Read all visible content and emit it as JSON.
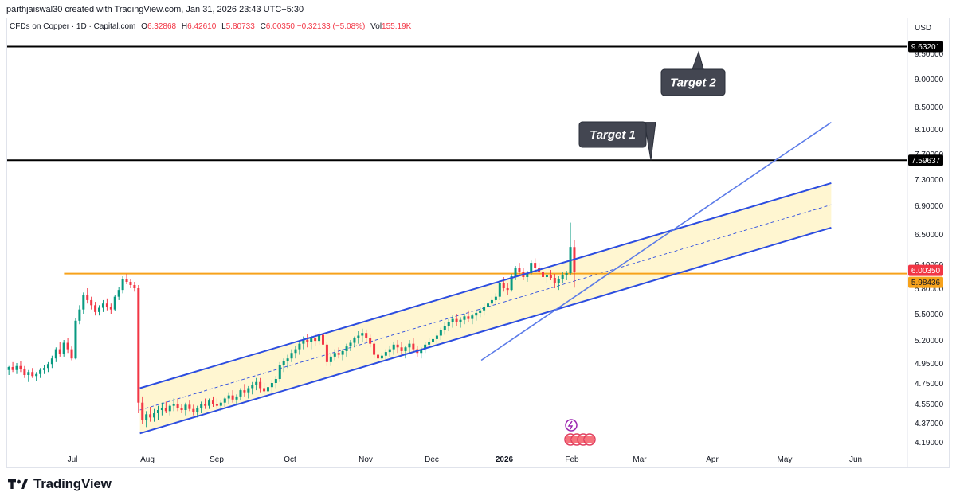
{
  "header": {
    "title": "parthjaiswal30 created with TradingView.com, Jan 31, 2026 23:43 UTC+5:30"
  },
  "legend": {
    "symbol": "CFDs on Copper · 1D · Capital.com",
    "open_label": "O",
    "open": "6.32868",
    "high_label": "H",
    "high": "6.42610",
    "low_label": "L",
    "low": "5.80733",
    "close_label": "C",
    "close": "6.00350",
    "change": "−0.32133 (−5.08%)",
    "vol_label": "Vol",
    "vol": "155.19K"
  },
  "currency": "USD",
  "footer": {
    "brand": "TradingView"
  },
  "colors": {
    "up": "#089981",
    "down": "#f23645",
    "channel": "#2c4de0",
    "channel_fill": "#fff5cc",
    "orange": "#f7a21b",
    "target_box": "#434651"
  },
  "chart_data": {
    "type": "candlestick",
    "title": "CFDs on Copper · 1D · Capital.com",
    "ylabel": "USD",
    "ylim": [
      4.1,
      9.75
    ],
    "y_ticks": [
      "4.19000",
      "4.37000",
      "4.55000",
      "4.75000",
      "4.95000",
      "5.20000",
      "5.50000",
      "5.80000",
      "6.10000",
      "6.50000",
      "6.90000",
      "7.30000",
      "7.70000",
      "8.10000",
      "8.50000",
      "9.00000",
      "9.50000"
    ],
    "x_ticks": [
      "Jul",
      "Aug",
      "Sep",
      "Oct",
      "Nov",
      "Dec",
      "2026",
      "Feb",
      "Mar",
      "Apr",
      "May",
      "Jun"
    ],
    "price_labels": [
      {
        "text": "9.63201",
        "value": 9.63201,
        "style": "black"
      },
      {
        "text": "7.59637",
        "value": 7.59637,
        "style": "black"
      },
      {
        "text": "6.00350",
        "value": 6.0035,
        "style": "red"
      },
      {
        "text": "5.98436",
        "value": 5.98436,
        "style": "orange"
      }
    ],
    "horizontal_lines": [
      {
        "name": "target-2-line",
        "value": 9.63201
      },
      {
        "name": "target-1-line",
        "value": 7.59637
      },
      {
        "name": "support-line",
        "value": 5.98436
      },
      {
        "name": "last-price-line",
        "value": 6.0035
      }
    ],
    "annotations": [
      {
        "name": "target-1",
        "text": "Target 1",
        "value": 7.59637
      },
      {
        "name": "target-2",
        "text": "Target 2",
        "value": 9.63201
      }
    ],
    "channel": {
      "upper": [
        [
          77.0,
          4.7
        ],
        [
          478.0,
          7.24
        ]
      ],
      "lower": [
        [
          77.0,
          4.27
        ],
        [
          478.0,
          6.59
        ]
      ],
      "mid": [
        [
          77.0,
          4.49
        ],
        [
          478.0,
          6.91
        ]
      ]
    },
    "trendline": [
      [
        275.0,
        4.98
      ],
      [
        478.0,
        8.22
      ]
    ],
    "candles_x_range": [
      1.0,
      329.0
    ],
    "candles": [
      [
        4.88,
        4.92,
        4.83,
        4.91
      ],
      [
        4.91,
        4.96,
        4.86,
        4.88
      ],
      [
        4.88,
        4.95,
        4.84,
        4.92
      ],
      [
        4.92,
        4.97,
        4.86,
        4.89
      ],
      [
        4.89,
        4.92,
        4.8,
        4.83
      ],
      [
        4.83,
        4.88,
        4.76,
        4.86
      ],
      [
        4.86,
        4.9,
        4.8,
        4.82
      ],
      [
        4.82,
        4.86,
        4.77,
        4.84
      ],
      [
        4.84,
        4.9,
        4.8,
        4.88
      ],
      [
        4.88,
        4.93,
        4.84,
        4.9
      ],
      [
        4.9,
        4.96,
        4.86,
        4.94
      ],
      [
        4.94,
        5.03,
        4.9,
        5.0
      ],
      [
        5.0,
        5.12,
        4.96,
        5.1
      ],
      [
        5.1,
        5.18,
        5.02,
        5.05
      ],
      [
        5.05,
        5.2,
        5.02,
        5.17
      ],
      [
        5.17,
        5.22,
        5.06,
        5.1
      ],
      [
        5.1,
        5.13,
        4.98,
        5.0
      ],
      [
        5.0,
        5.45,
        4.99,
        5.42
      ],
      [
        5.42,
        5.6,
        5.38,
        5.55
      ],
      [
        5.55,
        5.75,
        5.5,
        5.72
      ],
      [
        5.72,
        5.8,
        5.62,
        5.66
      ],
      [
        5.66,
        5.7,
        5.55,
        5.6
      ],
      [
        5.6,
        5.64,
        5.48,
        5.52
      ],
      [
        5.52,
        5.6,
        5.48,
        5.57
      ],
      [
        5.57,
        5.66,
        5.52,
        5.62
      ],
      [
        5.62,
        5.68,
        5.54,
        5.58
      ],
      [
        5.58,
        5.62,
        5.5,
        5.55
      ],
      [
        5.55,
        5.72,
        5.53,
        5.7
      ],
      [
        5.7,
        5.82,
        5.66,
        5.78
      ],
      [
        5.78,
        5.95,
        5.74,
        5.92
      ],
      [
        5.92,
        5.98,
        5.85,
        5.88
      ],
      [
        5.88,
        5.92,
        5.8,
        5.84
      ],
      [
        5.84,
        5.88,
        5.76,
        5.8
      ],
      [
        5.8,
        5.84,
        4.46,
        4.56
      ],
      [
        4.56,
        4.62,
        4.36,
        4.4
      ],
      [
        4.4,
        4.48,
        4.33,
        4.45
      ],
      [
        4.45,
        4.52,
        4.38,
        4.42
      ],
      [
        4.42,
        4.5,
        4.38,
        4.46
      ],
      [
        4.46,
        4.53,
        4.4,
        4.49
      ],
      [
        4.49,
        4.56,
        4.44,
        4.51
      ],
      [
        4.51,
        4.57,
        4.46,
        4.48
      ],
      [
        4.48,
        4.55,
        4.44,
        4.53
      ],
      [
        4.53,
        4.6,
        4.48,
        4.55
      ],
      [
        4.55,
        4.6,
        4.48,
        4.51
      ],
      [
        4.51,
        4.55,
        4.46,
        4.49
      ],
      [
        4.49,
        4.56,
        4.44,
        4.54
      ],
      [
        4.54,
        4.58,
        4.48,
        4.5
      ],
      [
        4.5,
        4.54,
        4.44,
        4.47
      ],
      [
        4.47,
        4.53,
        4.42,
        4.51
      ],
      [
        4.51,
        4.57,
        4.46,
        4.55
      ],
      [
        4.55,
        4.6,
        4.5,
        4.53
      ],
      [
        4.53,
        4.6,
        4.5,
        4.58
      ],
      [
        4.58,
        4.62,
        4.52,
        4.55
      ],
      [
        4.55,
        4.6,
        4.5,
        4.53
      ],
      [
        4.53,
        4.58,
        4.48,
        4.56
      ],
      [
        4.56,
        4.62,
        4.52,
        4.6
      ],
      [
        4.6,
        4.66,
        4.55,
        4.63
      ],
      [
        4.63,
        4.68,
        4.56,
        4.59
      ],
      [
        4.59,
        4.64,
        4.54,
        4.62
      ],
      [
        4.62,
        4.7,
        4.58,
        4.68
      ],
      [
        4.68,
        4.74,
        4.62,
        4.66
      ],
      [
        4.66,
        4.72,
        4.6,
        4.7
      ],
      [
        4.7,
        4.76,
        4.64,
        4.73
      ],
      [
        4.73,
        4.8,
        4.68,
        4.76
      ],
      [
        4.76,
        4.8,
        4.66,
        4.7
      ],
      [
        4.7,
        4.75,
        4.64,
        4.67
      ],
      [
        4.67,
        4.73,
        4.62,
        4.71
      ],
      [
        4.71,
        4.78,
        4.66,
        4.75
      ],
      [
        4.75,
        4.82,
        4.7,
        4.79
      ],
      [
        4.79,
        4.96,
        4.76,
        4.93
      ],
      [
        4.93,
        5.0,
        4.86,
        4.97
      ],
      [
        4.97,
        5.04,
        4.9,
        5.0
      ],
      [
        5.0,
        5.1,
        4.96,
        5.06
      ],
      [
        5.06,
        5.14,
        5.0,
        5.1
      ],
      [
        5.1,
        5.2,
        5.04,
        5.16
      ],
      [
        5.16,
        5.24,
        5.1,
        5.2
      ],
      [
        5.2,
        5.27,
        5.12,
        5.18
      ],
      [
        5.18,
        5.25,
        5.1,
        5.22
      ],
      [
        5.22,
        5.28,
        5.14,
        5.19
      ],
      [
        5.19,
        5.3,
        5.15,
        5.26
      ],
      [
        5.26,
        5.3,
        5.12,
        5.15
      ],
      [
        5.15,
        5.18,
        4.92,
        4.96
      ],
      [
        4.96,
        5.05,
        4.92,
        5.02
      ],
      [
        5.02,
        5.1,
        4.98,
        5.06
      ],
      [
        5.06,
        5.12,
        5.0,
        5.04
      ],
      [
        5.04,
        5.1,
        4.98,
        5.08
      ],
      [
        5.08,
        5.16,
        5.02,
        5.13
      ],
      [
        5.13,
        5.2,
        5.08,
        5.17
      ],
      [
        5.17,
        5.24,
        5.12,
        5.22
      ],
      [
        5.22,
        5.3,
        5.16,
        5.25
      ],
      [
        5.25,
        5.33,
        5.18,
        5.28
      ],
      [
        5.28,
        5.32,
        5.18,
        5.22
      ],
      [
        5.22,
        5.26,
        5.12,
        5.16
      ],
      [
        5.16,
        5.2,
        5.0,
        5.04
      ],
      [
        5.04,
        5.08,
        4.96,
        5.0
      ],
      [
        5.0,
        5.06,
        4.94,
        5.03
      ],
      [
        5.03,
        5.1,
        4.98,
        5.07
      ],
      [
        5.07,
        5.14,
        5.02,
        5.1
      ],
      [
        5.1,
        5.18,
        5.04,
        5.15
      ],
      [
        5.15,
        5.2,
        5.06,
        5.12
      ],
      [
        5.12,
        5.18,
        5.04,
        5.08
      ],
      [
        5.08,
        5.14,
        5.0,
        5.12
      ],
      [
        5.12,
        5.2,
        5.06,
        5.16
      ],
      [
        5.16,
        5.22,
        5.06,
        5.1
      ],
      [
        5.1,
        5.14,
        5.02,
        5.06
      ],
      [
        5.06,
        5.12,
        5.0,
        5.1
      ],
      [
        5.1,
        5.18,
        5.06,
        5.15
      ],
      [
        5.15,
        5.22,
        5.1,
        5.18
      ],
      [
        5.18,
        5.25,
        5.12,
        5.21
      ],
      [
        5.21,
        5.28,
        5.14,
        5.25
      ],
      [
        5.25,
        5.34,
        5.2,
        5.31
      ],
      [
        5.31,
        5.4,
        5.26,
        5.36
      ],
      [
        5.36,
        5.44,
        5.3,
        5.4
      ],
      [
        5.4,
        5.48,
        5.34,
        5.44
      ],
      [
        5.44,
        5.5,
        5.36,
        5.4
      ],
      [
        5.4,
        5.46,
        5.34,
        5.43
      ],
      [
        5.43,
        5.5,
        5.38,
        5.47
      ],
      [
        5.47,
        5.54,
        5.4,
        5.44
      ],
      [
        5.44,
        5.5,
        5.38,
        5.48
      ],
      [
        5.48,
        5.55,
        5.42,
        5.51
      ],
      [
        5.51,
        5.58,
        5.46,
        5.54
      ],
      [
        5.54,
        5.62,
        5.48,
        5.58
      ],
      [
        5.58,
        5.66,
        5.52,
        5.62
      ],
      [
        5.62,
        5.7,
        5.56,
        5.66
      ],
      [
        5.66,
        5.74,
        5.6,
        5.7
      ],
      [
        5.7,
        5.9,
        5.66,
        5.86
      ],
      [
        5.86,
        5.94,
        5.76,
        5.8
      ],
      [
        5.8,
        5.86,
        5.72,
        5.78
      ],
      [
        5.78,
        5.98,
        5.76,
        5.95
      ],
      [
        5.95,
        6.08,
        5.9,
        6.05
      ],
      [
        6.05,
        6.12,
        5.96,
        6.0
      ],
      [
        6.0,
        6.06,
        5.9,
        5.94
      ],
      [
        5.94,
        6.02,
        5.88,
        5.99
      ],
      [
        5.99,
        6.15,
        5.96,
        6.12
      ],
      [
        6.12,
        6.18,
        6.02,
        6.06
      ],
      [
        6.06,
        6.12,
        5.96,
        6.0
      ],
      [
        6.0,
        6.05,
        5.9,
        5.94
      ],
      [
        5.94,
        6.0,
        5.86,
        5.97
      ],
      [
        5.97,
        6.03,
        5.9,
        5.93
      ],
      [
        5.93,
        5.98,
        5.8,
        5.86
      ],
      [
        5.86,
        5.95,
        5.78,
        5.92
      ],
      [
        5.92,
        6.0,
        5.86,
        5.96
      ],
      [
        5.96,
        6.02,
        5.9,
        5.99
      ],
      [
        5.99,
        6.66,
        5.97,
        6.33
      ],
      [
        6.32868,
        6.4261,
        5.80733,
        6.0035
      ]
    ]
  }
}
